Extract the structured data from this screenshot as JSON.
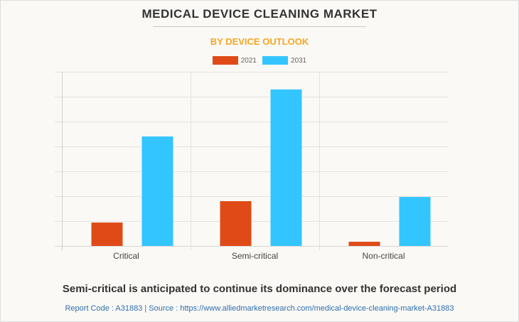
{
  "chart_data": {
    "type": "bar",
    "title": "MEDICAL DEVICE CLEANING MARKET",
    "subtitle": "BY DEVICE OUTLOOK",
    "categories": [
      "Critical",
      "Semi-critical",
      "Non-critical"
    ],
    "series": [
      {
        "name": "2021",
        "color": "#e04a17",
        "values": [
          0.94,
          1.8,
          0.17
        ]
      },
      {
        "name": "2031",
        "color": "#33c5ff",
        "values": [
          4.4,
          6.29,
          1.97
        ]
      }
    ],
    "xlabel": "",
    "ylabel": "",
    "ylim": [
      0,
      7
    ],
    "y_units_note": "No y-axis tick labels shown; values in gridline units",
    "grid": true,
    "legend_position": "top-center"
  },
  "headline": "Semi-critical is anticipated to continue its dominance over the forecast period",
  "source_line": "Report Code : A31883  |  Source : https://www.alliedmarketresearch.com/medical-device-cleaning-market-A31883"
}
